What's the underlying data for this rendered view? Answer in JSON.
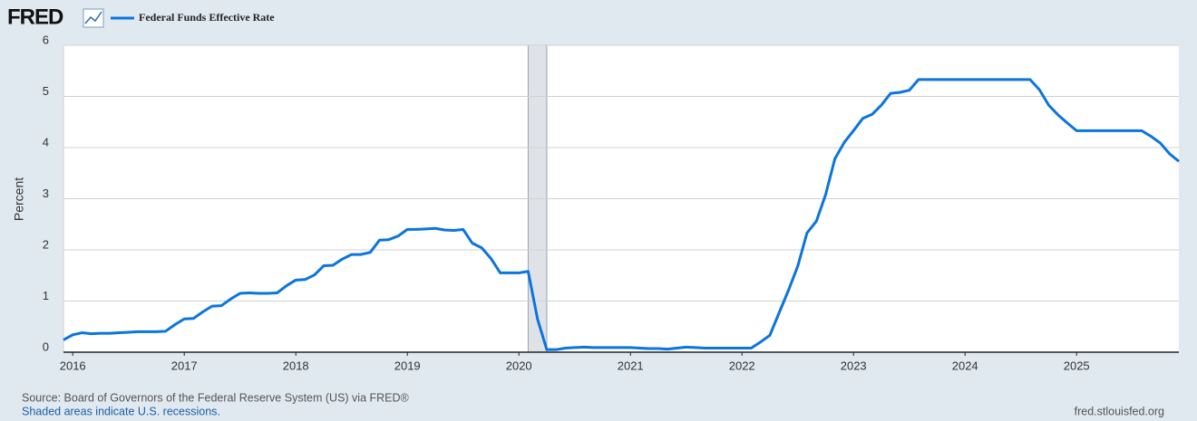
{
  "chart_data": {
    "type": "line",
    "logo": "FRED",
    "ylabel": "Percent",
    "source": "Source: Board of Governors of the Federal Reserve System (US) via FRED®",
    "note": "Shaded areas indicate U.S. recessions.",
    "credit": "fred.stlouisfed.org",
    "xlim": [
      2015.917,
      2025.917
    ],
    "xticks": [
      2016,
      2017,
      2018,
      2019,
      2020,
      2021,
      2022,
      2023,
      2024,
      2025
    ],
    "ylim": [
      0,
      6
    ],
    "yticks": [
      0,
      1,
      2,
      3,
      4,
      5,
      6
    ],
    "grid": true,
    "recessions": [
      [
        2020.083,
        2020.25
      ]
    ],
    "x": [
      2015.917,
      2016.0,
      2016.083,
      2016.167,
      2016.25,
      2016.333,
      2016.417,
      2016.5,
      2016.583,
      2016.667,
      2016.75,
      2016.833,
      2016.917,
      2017.0,
      2017.083,
      2017.167,
      2017.25,
      2017.333,
      2017.417,
      2017.5,
      2017.583,
      2017.667,
      2017.75,
      2017.833,
      2017.917,
      2018.0,
      2018.083,
      2018.167,
      2018.25,
      2018.333,
      2018.417,
      2018.5,
      2018.583,
      2018.667,
      2018.75,
      2018.833,
      2018.917,
      2019.0,
      2019.083,
      2019.167,
      2019.25,
      2019.333,
      2019.417,
      2019.5,
      2019.583,
      2019.667,
      2019.75,
      2019.833,
      2019.917,
      2020.0,
      2020.083,
      2020.167,
      2020.25,
      2020.333,
      2020.417,
      2020.5,
      2020.583,
      2020.667,
      2020.75,
      2020.833,
      2020.917,
      2021.0,
      2021.083,
      2021.167,
      2021.25,
      2021.333,
      2021.417,
      2021.5,
      2021.583,
      2021.667,
      2021.75,
      2021.833,
      2021.917,
      2022.0,
      2022.083,
      2022.167,
      2022.25,
      2022.333,
      2022.417,
      2022.5,
      2022.583,
      2022.667,
      2022.75,
      2022.833,
      2022.917,
      2023.0,
      2023.083,
      2023.167,
      2023.25,
      2023.333,
      2023.417,
      2023.5,
      2023.583,
      2023.667,
      2023.75,
      2023.833,
      2023.917,
      2024.0,
      2024.083,
      2024.167,
      2024.25,
      2024.333,
      2024.417,
      2024.5,
      2024.583,
      2024.667,
      2024.75,
      2024.833,
      2024.917,
      2025.0,
      2025.083,
      2025.167,
      2025.25,
      2025.333,
      2025.417,
      2025.5,
      2025.583,
      2025.667,
      2025.75,
      2025.833,
      2025.917
    ],
    "series": [
      {
        "name": "Federal Funds Effective Rate",
        "color": "#0b74de",
        "values": [
          0.24,
          0.34,
          0.38,
          0.36,
          0.37,
          0.37,
          0.38,
          0.39,
          0.4,
          0.4,
          0.4,
          0.41,
          0.54,
          0.65,
          0.66,
          0.79,
          0.9,
          0.91,
          1.04,
          1.15,
          1.16,
          1.15,
          1.15,
          1.16,
          1.3,
          1.41,
          1.42,
          1.51,
          1.69,
          1.7,
          1.82,
          1.91,
          1.91,
          1.95,
          2.19,
          2.2,
          2.27,
          2.4,
          2.4,
          2.41,
          2.42,
          2.39,
          2.38,
          2.4,
          2.13,
          2.04,
          1.83,
          1.55,
          1.55,
          1.55,
          1.58,
          0.65,
          0.05,
          0.05,
          0.08,
          0.09,
          0.1,
          0.09,
          0.09,
          0.09,
          0.09,
          0.09,
          0.08,
          0.07,
          0.07,
          0.06,
          0.08,
          0.1,
          0.09,
          0.08,
          0.08,
          0.08,
          0.08,
          0.08,
          0.08,
          0.2,
          0.33,
          0.77,
          1.21,
          1.68,
          2.33,
          2.56,
          3.08,
          3.78,
          4.1,
          4.33,
          4.57,
          4.65,
          4.83,
          5.06,
          5.08,
          5.12,
          5.33,
          5.33,
          5.33,
          5.33,
          5.33,
          5.33,
          5.33,
          5.33,
          5.33,
          5.33,
          5.33,
          5.33,
          5.33,
          5.13,
          4.83,
          4.64,
          4.48,
          4.33,
          4.33,
          4.33,
          4.33,
          4.33,
          4.33,
          4.33,
          4.33,
          4.22,
          4.09,
          3.88,
          3.73
        ]
      }
    ]
  }
}
